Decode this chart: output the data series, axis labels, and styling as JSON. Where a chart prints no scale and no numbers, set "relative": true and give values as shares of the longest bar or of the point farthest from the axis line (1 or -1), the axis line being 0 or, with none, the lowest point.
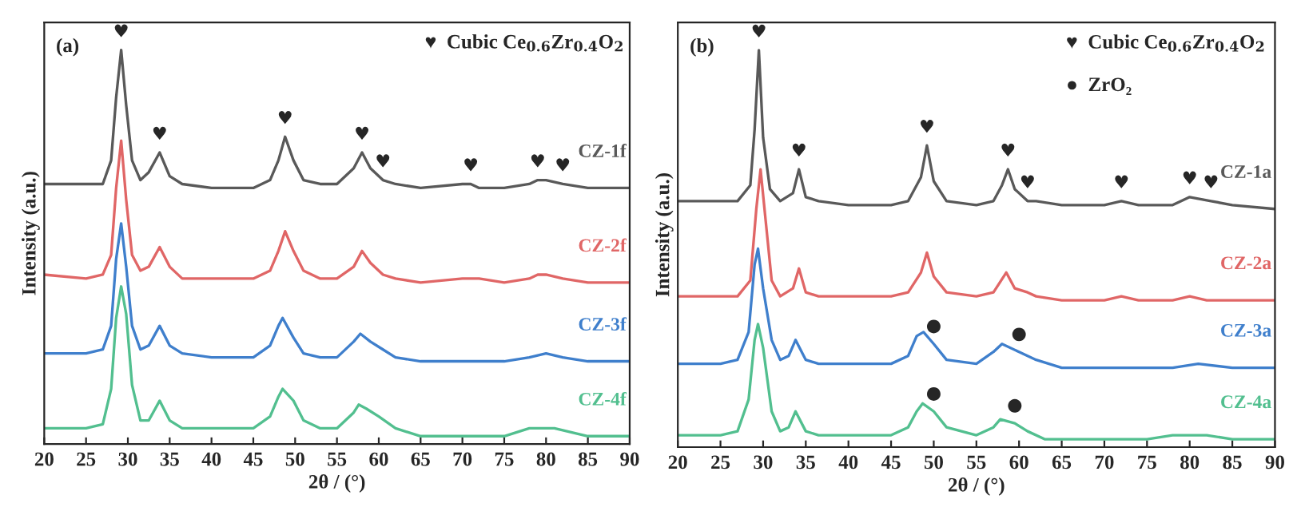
{
  "chart_data": [
    {
      "type": "line",
      "relative": true,
      "xlabel": "2θ / (°)",
      "ylabel": "Intensity (a.u.)",
      "xlim": [
        20,
        90
      ],
      "xticks": [
        20,
        25,
        30,
        35,
        40,
        45,
        50,
        55,
        60,
        65,
        70,
        75,
        80,
        85,
        90
      ],
      "legend": false,
      "grid": false,
      "marker": "none",
      "line_style": "solid",
      "annotations": [
        "(a)",
        "♥  Cubic Ce$_{0.6}$Zr$_{0.4}$O$_{2}$",
        {
          "text": "♥",
          "x": 29.2,
          "y": 1.0
        },
        {
          "text": "♥",
          "x": 33.8,
          "y": 0.74
        },
        {
          "text": "♥",
          "x": 48.8,
          "y": 0.78
        },
        {
          "text": "♥",
          "x": 58,
          "y": 0.74
        },
        {
          "text": "♥",
          "x": 60.5,
          "y": 0.67
        },
        {
          "text": "♥",
          "x": 71,
          "y": 0.66
        },
        {
          "text": "♥",
          "x": 79,
          "y": 0.67
        },
        {
          "text": "♥",
          "x": 82,
          "y": 0.66
        }
      ],
      "series": [
        {
          "name": "CZ-1f",
          "color": "#595959",
          "x": [
            20,
            25,
            27,
            28,
            28.6,
            29.2,
            29.8,
            30.5,
            31.5,
            32.5,
            33.8,
            35,
            36.5,
            40,
            45,
            47,
            48,
            48.8,
            49.8,
            51,
            53,
            55,
            57,
            58,
            59,
            60.5,
            62,
            65,
            70,
            71,
            72,
            75,
            78,
            79,
            80,
            82,
            85,
            90
          ],
          "values": [
            0.66,
            0.66,
            0.66,
            0.72,
            0.88,
            1.0,
            0.86,
            0.72,
            0.67,
            0.69,
            0.74,
            0.68,
            0.66,
            0.65,
            0.65,
            0.67,
            0.72,
            0.78,
            0.72,
            0.67,
            0.66,
            0.66,
            0.7,
            0.74,
            0.7,
            0.67,
            0.66,
            0.65,
            0.66,
            0.66,
            0.65,
            0.65,
            0.66,
            0.67,
            0.67,
            0.66,
            0.65,
            0.65
          ]
        },
        {
          "name": "CZ-2f",
          "color": "#e06666",
          "x": [
            20,
            25,
            27,
            28,
            28.6,
            29.2,
            29.8,
            30.5,
            31.5,
            32.5,
            33.8,
            35,
            36.5,
            40,
            45,
            47,
            48,
            48.8,
            49.8,
            51,
            53,
            55,
            57,
            58,
            59,
            60.5,
            62,
            65,
            70,
            71,
            72,
            75,
            78,
            79,
            80,
            82,
            85,
            90
          ],
          "values": [
            0.43,
            0.42,
            0.43,
            0.48,
            0.65,
            0.77,
            0.62,
            0.48,
            0.44,
            0.45,
            0.5,
            0.45,
            0.42,
            0.42,
            0.42,
            0.44,
            0.49,
            0.54,
            0.49,
            0.44,
            0.42,
            0.42,
            0.45,
            0.49,
            0.46,
            0.43,
            0.42,
            0.41,
            0.42,
            0.42,
            0.42,
            0.41,
            0.42,
            0.43,
            0.43,
            0.42,
            0.41,
            0.41
          ]
        },
        {
          "name": "CZ-3f",
          "color": "#3f7fcc",
          "x": [
            20,
            25,
            27,
            28,
            28.6,
            29.2,
            29.8,
            30.5,
            31.5,
            32.5,
            33.8,
            35,
            36.5,
            40,
            45,
            47,
            48,
            48.5,
            49.8,
            51,
            53,
            55,
            57,
            57.8,
            59,
            60.5,
            62,
            65,
            70,
            71,
            72,
            75,
            78,
            80,
            82,
            85,
            90
          ],
          "values": [
            0.23,
            0.23,
            0.24,
            0.3,
            0.47,
            0.56,
            0.45,
            0.3,
            0.24,
            0.25,
            0.3,
            0.25,
            0.23,
            0.22,
            0.22,
            0.25,
            0.3,
            0.32,
            0.27,
            0.23,
            0.22,
            0.22,
            0.26,
            0.28,
            0.26,
            0.24,
            0.22,
            0.21,
            0.21,
            0.21,
            0.21,
            0.21,
            0.22,
            0.23,
            0.22,
            0.21,
            0.21
          ]
        },
        {
          "name": "CZ-4f",
          "color": "#52bf8f",
          "x": [
            20,
            25,
            27,
            28,
            28.6,
            29.2,
            29.8,
            30.5,
            31.5,
            32.5,
            33.8,
            35,
            36.5,
            40,
            45,
            47,
            48,
            48.5,
            49.8,
            51,
            53,
            55,
            57,
            57.6,
            58.5,
            60,
            62,
            65,
            70,
            72,
            75,
            78,
            80,
            81,
            83,
            85,
            90
          ],
          "values": [
            0.04,
            0.04,
            0.05,
            0.14,
            0.32,
            0.4,
            0.33,
            0.15,
            0.06,
            0.06,
            0.11,
            0.06,
            0.04,
            0.04,
            0.04,
            0.07,
            0.12,
            0.14,
            0.11,
            0.06,
            0.04,
            0.04,
            0.08,
            0.1,
            0.09,
            0.07,
            0.04,
            0.02,
            0.02,
            0.02,
            0.02,
            0.04,
            0.04,
            0.04,
            0.03,
            0.02,
            0.02
          ]
        }
      ]
    },
    {
      "type": "line",
      "relative": true,
      "xlabel": "2θ / (°)",
      "ylabel": "Intensity (a.u.)",
      "xlim": [
        20,
        90
      ],
      "xticks": [
        20,
        25,
        30,
        35,
        40,
        45,
        50,
        55,
        60,
        65,
        70,
        75,
        80,
        85,
        90
      ],
      "legend": false,
      "grid": false,
      "marker": "none",
      "line_style": "solid",
      "annotations": [
        "(b)",
        "♥  Cubic Ce$_{0.6}$Zr$_{0.4}$O$_{2}$",
        "●  ZrO₂",
        {
          "text": "♥",
          "x": 29.5,
          "y": 1.0
        },
        {
          "text": "♥",
          "x": 34.2,
          "y": 0.7
        },
        {
          "text": "♥",
          "x": 49.2,
          "y": 0.76
        },
        {
          "text": "♥",
          "x": 58.7,
          "y": 0.7
        },
        {
          "text": "♥",
          "x": 61,
          "y": 0.62
        },
        {
          "text": "♥",
          "x": 72,
          "y": 0.62
        },
        {
          "text": "♥",
          "x": 80,
          "y": 0.63
        },
        {
          "text": "♥",
          "x": 82.5,
          "y": 0.62
        },
        {
          "text": "●",
          "x": 50,
          "y": 0.26
        },
        {
          "text": "●",
          "x": 60,
          "y": 0.24
        },
        {
          "text": "●",
          "x": 50,
          "y": 0.09
        },
        {
          "text": "●",
          "x": 59.5,
          "y": 0.06
        }
      ],
      "series": [
        {
          "name": "CZ-1a",
          "color": "#595959",
          "x": [
            20,
            25,
            27,
            28.5,
            29,
            29.5,
            30,
            30.8,
            32,
            33.5,
            34.2,
            35,
            36.5,
            40,
            45,
            47,
            48.5,
            49.2,
            50,
            51.5,
            55,
            57,
            58,
            58.7,
            59.5,
            61,
            62,
            65,
            70,
            72,
            74,
            78,
            80,
            82.5,
            85,
            90
          ],
          "values": [
            0.62,
            0.62,
            0.62,
            0.66,
            0.8,
            1.0,
            0.78,
            0.65,
            0.62,
            0.64,
            0.7,
            0.63,
            0.62,
            0.61,
            0.61,
            0.62,
            0.68,
            0.76,
            0.67,
            0.62,
            0.61,
            0.62,
            0.66,
            0.7,
            0.65,
            0.62,
            0.62,
            0.61,
            0.61,
            0.62,
            0.61,
            0.61,
            0.63,
            0.62,
            0.61,
            0.6
          ]
        },
        {
          "name": "CZ-2a",
          "color": "#e06666",
          "x": [
            20,
            25,
            27,
            28.5,
            29.2,
            29.7,
            30.3,
            31,
            32,
            33.5,
            34.2,
            35,
            36.5,
            40,
            45,
            47,
            48.5,
            49.2,
            50,
            51.5,
            55,
            57,
            58.5,
            59.5,
            61,
            62,
            65,
            70,
            72,
            74,
            78,
            80,
            82,
            85,
            90
          ],
          "values": [
            0.38,
            0.38,
            0.38,
            0.42,
            0.6,
            0.7,
            0.57,
            0.42,
            0.38,
            0.4,
            0.45,
            0.39,
            0.38,
            0.38,
            0.38,
            0.39,
            0.44,
            0.49,
            0.43,
            0.39,
            0.38,
            0.39,
            0.44,
            0.4,
            0.39,
            0.38,
            0.37,
            0.37,
            0.38,
            0.37,
            0.37,
            0.38,
            0.37,
            0.37,
            0.37
          ]
        },
        {
          "name": "CZ-3a",
          "color": "#3f7fcc",
          "x": [
            20,
            25,
            27,
            28.3,
            29,
            29.4,
            30,
            31,
            32,
            33,
            33.8,
            35,
            36.5,
            40,
            45,
            47,
            48,
            48.8,
            50,
            51.5,
            55,
            57,
            58,
            60,
            62,
            65,
            70,
            72,
            75,
            78,
            81,
            85,
            90
          ],
          "values": [
            0.21,
            0.21,
            0.22,
            0.29,
            0.46,
            0.5,
            0.4,
            0.27,
            0.22,
            0.23,
            0.27,
            0.22,
            0.21,
            0.21,
            0.21,
            0.23,
            0.28,
            0.29,
            0.26,
            0.22,
            0.21,
            0.24,
            0.26,
            0.24,
            0.22,
            0.2,
            0.2,
            0.2,
            0.2,
            0.2,
            0.21,
            0.2,
            0.2
          ]
        },
        {
          "name": "CZ-4a",
          "color": "#52bf8f",
          "x": [
            20,
            25,
            27,
            28.3,
            29,
            29.4,
            30,
            31,
            32,
            33,
            33.8,
            35,
            36.5,
            40,
            45,
            47,
            48,
            48.7,
            50,
            51.5,
            55,
            57,
            57.8,
            59.5,
            61,
            63,
            65,
            70,
            72,
            75,
            78,
            80,
            82,
            85,
            90
          ],
          "values": [
            0.03,
            0.03,
            0.04,
            0.12,
            0.27,
            0.31,
            0.25,
            0.09,
            0.04,
            0.05,
            0.09,
            0.04,
            0.03,
            0.03,
            0.03,
            0.05,
            0.09,
            0.11,
            0.09,
            0.05,
            0.03,
            0.05,
            0.07,
            0.06,
            0.04,
            0.02,
            0.02,
            0.02,
            0.02,
            0.02,
            0.03,
            0.03,
            0.03,
            0.02,
            0.02
          ]
        }
      ]
    }
  ]
}
